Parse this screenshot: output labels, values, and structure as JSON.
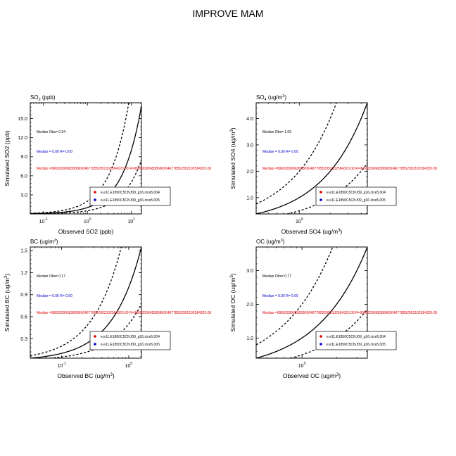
{
  "page_title": "IMPROVE MAM",
  "legend_colors": [
    "#e00000",
    "#0000cc"
  ],
  "chart_data": [
    {
      "type": "scatter",
      "title": "SO",
      "title_sub": "2",
      "title_tail": " (ppb)",
      "xlabel": "Observed SO2 (ppb)",
      "ylabel": "Simulated SO2 (ppb)",
      "x_scale": "log",
      "xlim": [
        0.05,
        17
      ],
      "ylim": [
        0,
        17.5
      ],
      "x_ticks": [
        {
          "value": 0.1,
          "label": "10",
          "sup": "-1"
        },
        {
          "value": 1,
          "label": "10",
          "sup": "0"
        },
        {
          "value": 10,
          "label": "10",
          "sup": "1"
        }
      ],
      "y_ticks": [
        {
          "value": 3,
          "label": "3.0"
        },
        {
          "value": 6,
          "label": "6.0"
        },
        {
          "value": 9,
          "label": "9.0"
        },
        {
          "value": 12,
          "label": "12.0"
        },
        {
          "value": 15,
          "label": "15.0"
        }
      ],
      "reference_lines": [
        {
          "slope": 1,
          "style": "solid"
        },
        {
          "slope": 2,
          "style": "dashed"
        },
        {
          "slope": 0.5,
          "style": "dashed"
        }
      ],
      "annotations": [
        {
          "text": "Median Obs= 0.34",
          "color": "#000000"
        },
        {
          "text": "Median = 0.00 R= 0.00",
          "color": "#0000cc"
        },
        {
          "text": "Median =9969209968386869046778552952102584320.00 R=9969209968386869046778552952102584320.00",
          "color": "#e00000"
        }
      ],
      "legend": [
        "e.e11.E1850C5CN.f09_g16.cice5.004",
        "e.e11.E1850C5CN.f09_g16.cice5.005"
      ],
      "series": [
        {
          "name": "e.e11.E1850C5CN.f09_g16.cice5.004",
          "points": []
        },
        {
          "name": "e.e11.E1850C5CN.f09_g16.cice5.005",
          "points": []
        }
      ]
    },
    {
      "type": "scatter",
      "title": "SO",
      "title_sub": "4",
      "title_tail": " (ug/m",
      "title_sup": "3",
      "title_end": ")",
      "xlabel": "Observed SO4 (ug/m",
      "xlabel_sup": "3",
      "xlabel_end": ")",
      "ylabel": "Simulated SO4 (ug/m",
      "ylabel_sup": "3",
      "ylabel_end": ")",
      "x_scale": "log",
      "xlim": [
        0.38,
        4.6
      ],
      "ylim": [
        0.38,
        4.6
      ],
      "x_ticks": [
        {
          "value": 1,
          "label": "10",
          "sup": "0"
        }
      ],
      "y_ticks": [
        {
          "value": 1,
          "label": "1.0"
        },
        {
          "value": 2,
          "label": "2.0"
        },
        {
          "value": 3,
          "label": "3.0"
        },
        {
          "value": 4,
          "label": "4.0"
        }
      ],
      "reference_lines": [
        {
          "slope": 1,
          "style": "solid"
        },
        {
          "slope": 2,
          "style": "dashed"
        },
        {
          "slope": 0.5,
          "style": "dashed"
        }
      ],
      "annotations": [
        {
          "text": "Median Obs= 1.09",
          "color": "#000000"
        },
        {
          "text": "Median = 0.00 R= 0.00",
          "color": "#0000cc"
        },
        {
          "text": "Median =9969209968386869046778552952102584320.00 R=9969209968386869046778552952102584320.00",
          "color": "#e00000"
        }
      ],
      "legend": [
        "e.e11.E1850C5CN.f09_g16.cice5.004",
        "e.e11.E1850C5CN.f09_g16.cice5.005"
      ],
      "series": [
        {
          "name": "e.e11.E1850C5CN.f09_g16.cice5.004",
          "points": []
        },
        {
          "name": "e.e11.E1850C5CN.f09_g16.cice5.005",
          "points": []
        }
      ]
    },
    {
      "type": "scatter",
      "title": "BC (ug/m",
      "title_sup": "3",
      "title_end": ")",
      "xlabel": "Observed BC (ug/m",
      "xlabel_sup": "3",
      "xlabel_end": ")",
      "ylabel": "Simulated BC (ug/m",
      "ylabel_sup": "3",
      "ylabel_end": ")",
      "x_scale": "log",
      "xlim": [
        0.034,
        1.55
      ],
      "ylim": [
        0.034,
        1.55
      ],
      "x_ticks": [
        {
          "value": 0.1,
          "label": "10",
          "sup": "-1"
        },
        {
          "value": 1,
          "label": "10",
          "sup": "0"
        }
      ],
      "y_ticks": [
        {
          "value": 0.3,
          "label": "0.3"
        },
        {
          "value": 0.6,
          "label": "0.6"
        },
        {
          "value": 0.9,
          "label": "0.9"
        },
        {
          "value": 1.2,
          "label": "1.2"
        },
        {
          "value": 1.5,
          "label": "1.5"
        }
      ],
      "reference_lines": [
        {
          "slope": 1,
          "style": "solid"
        },
        {
          "slope": 2,
          "style": "dashed"
        },
        {
          "slope": 0.5,
          "style": "dashed"
        }
      ],
      "annotations": [
        {
          "text": "Median Obs= 0.17",
          "color": "#000000"
        },
        {
          "text": "Median = 0.00 R= 0.00",
          "color": "#0000cc"
        },
        {
          "text": "Median =9969209968386869046778552952102584320.00 R=9969209968386869046778552952102584320.00",
          "color": "#e00000"
        }
      ],
      "legend": [
        "e.e11.E1850C5CN.f09_g16.cice5.004",
        "e.e11.E1850C5CN.f09_g16.cice5.005"
      ],
      "series": [
        {
          "name": "e.e11.E1850C5CN.f09_g16.cice5.004",
          "points": []
        },
        {
          "name": "e.e11.E1850C5CN.f09_g16.cice5.005",
          "points": []
        }
      ]
    },
    {
      "type": "scatter",
      "title": "OC (ug/m",
      "title_sup": "3",
      "title_end": ")",
      "xlabel": "Observed OC (ug/m",
      "xlabel_sup": "3",
      "xlabel_end": ")",
      "ylabel": "Simulated OC (ug/m",
      "ylabel_sup": "3",
      "ylabel_end": ")",
      "x_scale": "log",
      "xlim": [
        0.4,
        3.7
      ],
      "ylim": [
        0.4,
        3.7
      ],
      "x_ticks": [
        {
          "value": 1,
          "label": "10",
          "sup": "0"
        }
      ],
      "y_ticks": [
        {
          "value": 1,
          "label": "1.0"
        },
        {
          "value": 2,
          "label": "2.0"
        },
        {
          "value": 3,
          "label": "3.0"
        }
      ],
      "reference_lines": [
        {
          "slope": 1,
          "style": "solid"
        },
        {
          "slope": 2,
          "style": "dashed"
        },
        {
          "slope": 0.5,
          "style": "dashed"
        }
      ],
      "annotations": [
        {
          "text": "Median Obs= 0.77",
          "color": "#000000"
        },
        {
          "text": "Median = 0.00 R= 0.00",
          "color": "#0000cc"
        },
        {
          "text": "Median =9969209968386869046778552952102584320.00 R=9969209968386869046778552952102584320.00",
          "color": "#e00000"
        }
      ],
      "legend": [
        "e.e11.E1850C5CN.f09_g16.cice5.004",
        "e.e11.E1850C5CN.f09_g16.cice5.005"
      ],
      "series": [
        {
          "name": "e.e11.E1850C5CN.f09_g16.cice5.004",
          "points": []
        },
        {
          "name": "e.e11.E1850C5CN.f09_g16.cice5.005",
          "points": []
        }
      ]
    }
  ]
}
